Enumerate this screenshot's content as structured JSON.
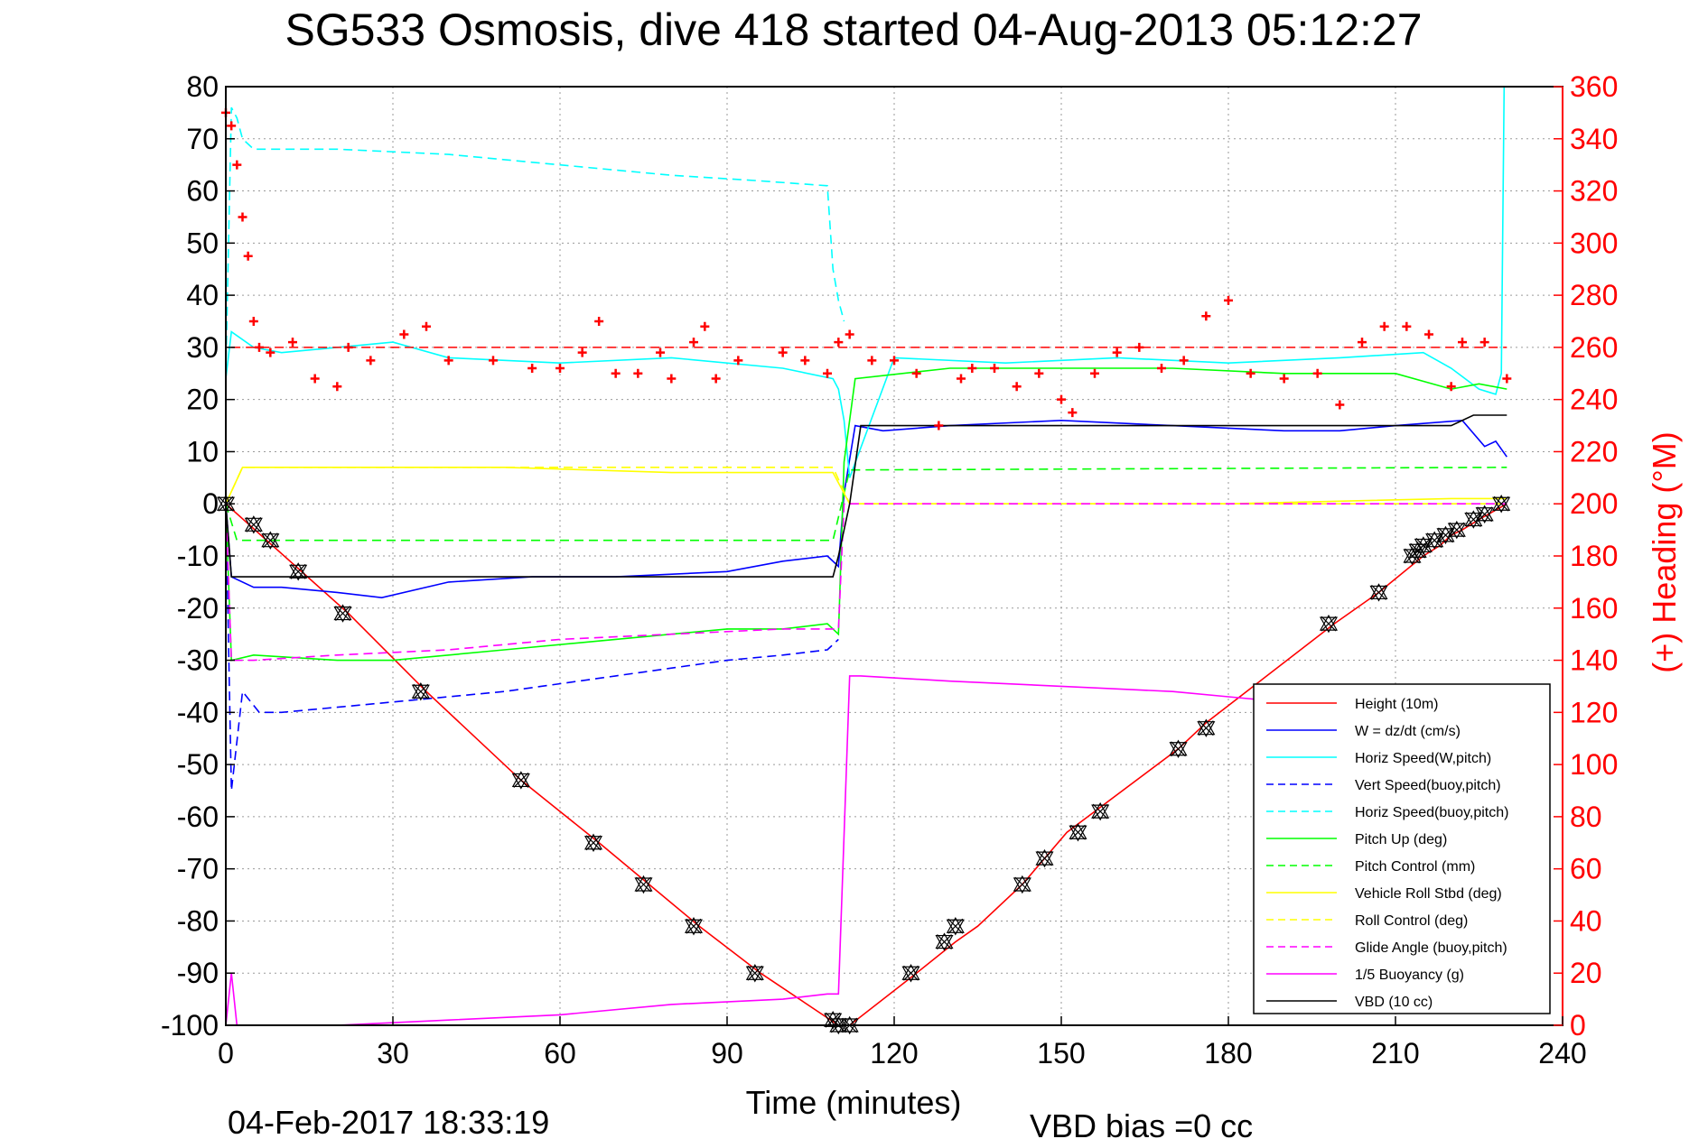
{
  "chart_data": {
    "type": "line",
    "title": "SG533 Osmosis, dive 418 started 04-Aug-2013 05:12:27",
    "xlabel": "Time (minutes)",
    "ylabel": "",
    "y2label": "(+) Heading (°M)",
    "footer_left": "04-Feb-2017 18:33:19",
    "footer_right": "VBD bias =0 cc",
    "xlim": [
      0,
      240
    ],
    "ylim": [
      -100,
      80
    ],
    "y2lim": [
      0,
      360
    ],
    "xticks": [
      "0",
      "30",
      "60",
      "90",
      "120",
      "150",
      "180",
      "210",
      "240"
    ],
    "yticks": [
      "80",
      "70",
      "60",
      "50",
      "40",
      "30",
      "20",
      "10",
      "0",
      "-10",
      "-20",
      "-30",
      "-40",
      "-50",
      "-60",
      "-70",
      "-80",
      "-90",
      "-100"
    ],
    "y2ticks": [
      "360",
      "340",
      "320",
      "300",
      "280",
      "260",
      "240",
      "220",
      "200",
      "180",
      "160",
      "140",
      "120",
      "100",
      "80",
      "60",
      "40",
      "20",
      "0"
    ],
    "grid": true,
    "legend_position": "bottom-right",
    "colors": {
      "height": "#ff0000",
      "w": "#0000ff",
      "horiz": "#00ffff",
      "pitch": "#00ff00",
      "roll": "#ffff00",
      "glide": "#ff00ff",
      "buoy": "#ff00ff",
      "vbd": "#000000",
      "heading": "#ff0000"
    },
    "series": [
      {
        "name": "Height (10m)",
        "x": [
          0,
          22,
          36,
          53,
          67,
          76,
          85,
          96,
          110,
          112,
          124,
          131,
          135,
          143,
          147,
          151,
          156,
          171,
          176,
          199,
          207,
          215,
          218,
          220,
          222,
          225,
          230
        ],
        "values": [
          0,
          -21,
          -36,
          -53,
          -65,
          -73,
          -81,
          -90,
          -100,
          -100,
          -90,
          -84,
          -81,
          -73,
          -68,
          -63,
          -59,
          -47,
          -42,
          -23,
          -17,
          -10,
          -8,
          -6,
          -5,
          -3,
          0
        ]
      },
      {
        "name": "W = dz/dt (cm/s)",
        "x": [
          0,
          1,
          5,
          10,
          20,
          28,
          40,
          55,
          70,
          90,
          100,
          108,
          110,
          111,
          113,
          118,
          130,
          150,
          170,
          190,
          200,
          210,
          222,
          226,
          228,
          230
        ],
        "values": [
          0,
          -14,
          -16,
          -16,
          -17,
          -18,
          -15,
          -14,
          -14,
          -13,
          -11,
          -10,
          -12,
          2,
          15,
          14,
          15,
          16,
          15,
          14,
          14,
          15,
          16,
          11,
          12,
          9
        ]
      },
      {
        "name": "Horiz Speed(W,pitch)",
        "x": [
          0,
          1,
          5,
          10,
          20,
          30,
          40,
          60,
          80,
          100,
          109,
          110,
          111,
          112,
          120,
          140,
          160,
          180,
          200,
          215,
          220,
          225,
          228,
          229,
          229.5
        ],
        "values": [
          24,
          33,
          30,
          29,
          30,
          31,
          28,
          27,
          28,
          26,
          24,
          22,
          16,
          5,
          28,
          27,
          28,
          27,
          28,
          29,
          26,
          22,
          21,
          25,
          80
        ]
      },
      {
        "name": "Vert Speed(buoy,pitch)",
        "x": [
          0,
          1,
          3,
          6,
          10,
          20,
          30,
          50,
          70,
          90,
          100,
          108,
          110
        ],
        "values": [
          0,
          -55,
          -36,
          -40,
          -40,
          -39,
          -38,
          -36,
          -33,
          -30,
          -29,
          -28,
          -26
        ]
      },
      {
        "name": "Horiz Speed(buoy,pitch)",
        "x": [
          0,
          1,
          2,
          3,
          5,
          10,
          20,
          40,
          60,
          80,
          95,
          108,
          109,
          110,
          111
        ],
        "values": [
          25,
          76,
          74,
          70,
          68,
          68,
          68,
          67,
          65,
          63,
          62,
          61,
          45,
          39,
          35
        ]
      },
      {
        "name": "Pitch Up (deg)",
        "x": [
          0,
          1,
          5,
          20,
          30,
          50,
          70,
          90,
          100,
          108,
          110,
          111,
          113,
          130,
          150,
          170,
          190,
          210,
          220,
          225,
          230
        ],
        "values": [
          0,
          -30,
          -29,
          -30,
          -30,
          -28,
          -26,
          -24,
          -24,
          -23,
          -25,
          8,
          24,
          26,
          26,
          26,
          25,
          25,
          22,
          23,
          22
        ]
      },
      {
        "name": "Pitch Control (mm)",
        "x": [
          0,
          2,
          50,
          109,
          112,
          230
        ],
        "values": [
          0,
          -7,
          -7,
          -7,
          6.5,
          7
        ]
      },
      {
        "name": "Vehicle Roll Stbd (deg)",
        "x": [
          0,
          3,
          20,
          50,
          80,
          109,
          112,
          140,
          180,
          220,
          230
        ],
        "values": [
          0,
          7,
          7,
          7,
          6,
          6,
          0,
          0,
          0,
          1,
          1
        ]
      },
      {
        "name": "Roll Control (deg)",
        "x": [
          0,
          3,
          109,
          112,
          230
        ],
        "values": [
          0,
          7,
          7,
          0,
          0
        ]
      },
      {
        "name": "Glide Angle (buoy,pitch)",
        "x": [
          0,
          1,
          5,
          20,
          40,
          60,
          80,
          100,
          108,
          110,
          111,
          112,
          230
        ],
        "values": [
          0,
          -30,
          -30,
          -29,
          -28,
          -26,
          -25,
          -24,
          -24,
          -24,
          0,
          0,
          0
        ]
      },
      {
        "name": "1/5 Buoyancy (g)",
        "x": [
          0,
          1,
          2,
          20,
          40,
          60,
          80,
          100,
          108,
          110,
          112,
          114,
          130,
          150,
          170,
          180,
          190
        ],
        "values": [
          -100,
          -90,
          -100,
          -100,
          -99,
          -98,
          -96,
          -95,
          -94,
          -94,
          -33,
          -33,
          -34,
          -35,
          -36,
          -37,
          -38
        ]
      },
      {
        "name": "VBD (10 cc)",
        "x": [
          0,
          1,
          109,
          110,
          112,
          114,
          130,
          180,
          220,
          224,
          230
        ],
        "values": [
          0,
          -14,
          -14,
          -10,
          0,
          15,
          15,
          15,
          15,
          17,
          17
        ]
      },
      {
        "name": "",
        "axis": "right",
        "x": [
          0,
          1,
          2,
          3,
          4,
          5,
          6,
          8,
          12,
          16,
          20,
          22,
          26,
          32,
          36,
          40,
          48,
          55,
          60,
          64,
          67,
          70,
          74,
          78,
          80,
          84,
          86,
          88,
          92,
          100,
          104,
          108,
          110,
          112,
          116,
          120,
          124,
          128,
          132,
          134,
          138,
          142,
          146,
          150,
          152,
          156,
          160,
          164,
          168,
          172,
          176,
          180,
          184,
          190,
          196,
          200,
          204,
          208,
          212,
          216,
          220,
          222,
          226,
          230
        ],
        "values": [
          350,
          345,
          330,
          310,
          295,
          270,
          260,
          258,
          262,
          248,
          245,
          260,
          255,
          265,
          268,
          255,
          255,
          252,
          252,
          258,
          270,
          250,
          250,
          258,
          248,
          262,
          268,
          248,
          255,
          258,
          255,
          250,
          262,
          265,
          255,
          255,
          250,
          230,
          248,
          252,
          252,
          245,
          250,
          240,
          235,
          250,
          258,
          260,
          252,
          255,
          272,
          278,
          250,
          248,
          250,
          238,
          262,
          268,
          268,
          265,
          245,
          262,
          262,
          248
        ]
      }
    ],
    "markers": {
      "x": [
        0,
        5,
        8,
        13,
        21,
        35,
        53,
        66,
        75,
        84,
        95,
        109,
        110,
        112,
        123,
        129,
        131,
        143,
        147,
        153,
        157,
        171,
        176,
        198,
        207,
        213,
        214,
        215,
        217,
        219,
        221,
        224,
        226,
        229
      ],
      "values": [
        0,
        -4,
        -7,
        -13,
        -21,
        -36,
        -53,
        -65,
        -73,
        -81,
        -90,
        -99,
        -100,
        -100,
        -90,
        -84,
        -81,
        -73,
        -68,
        -63,
        -59,
        -47,
        -43,
        -23,
        -17,
        -10,
        -9,
        -8,
        -7,
        -6,
        -5,
        -3,
        -2,
        0
      ]
    }
  }
}
